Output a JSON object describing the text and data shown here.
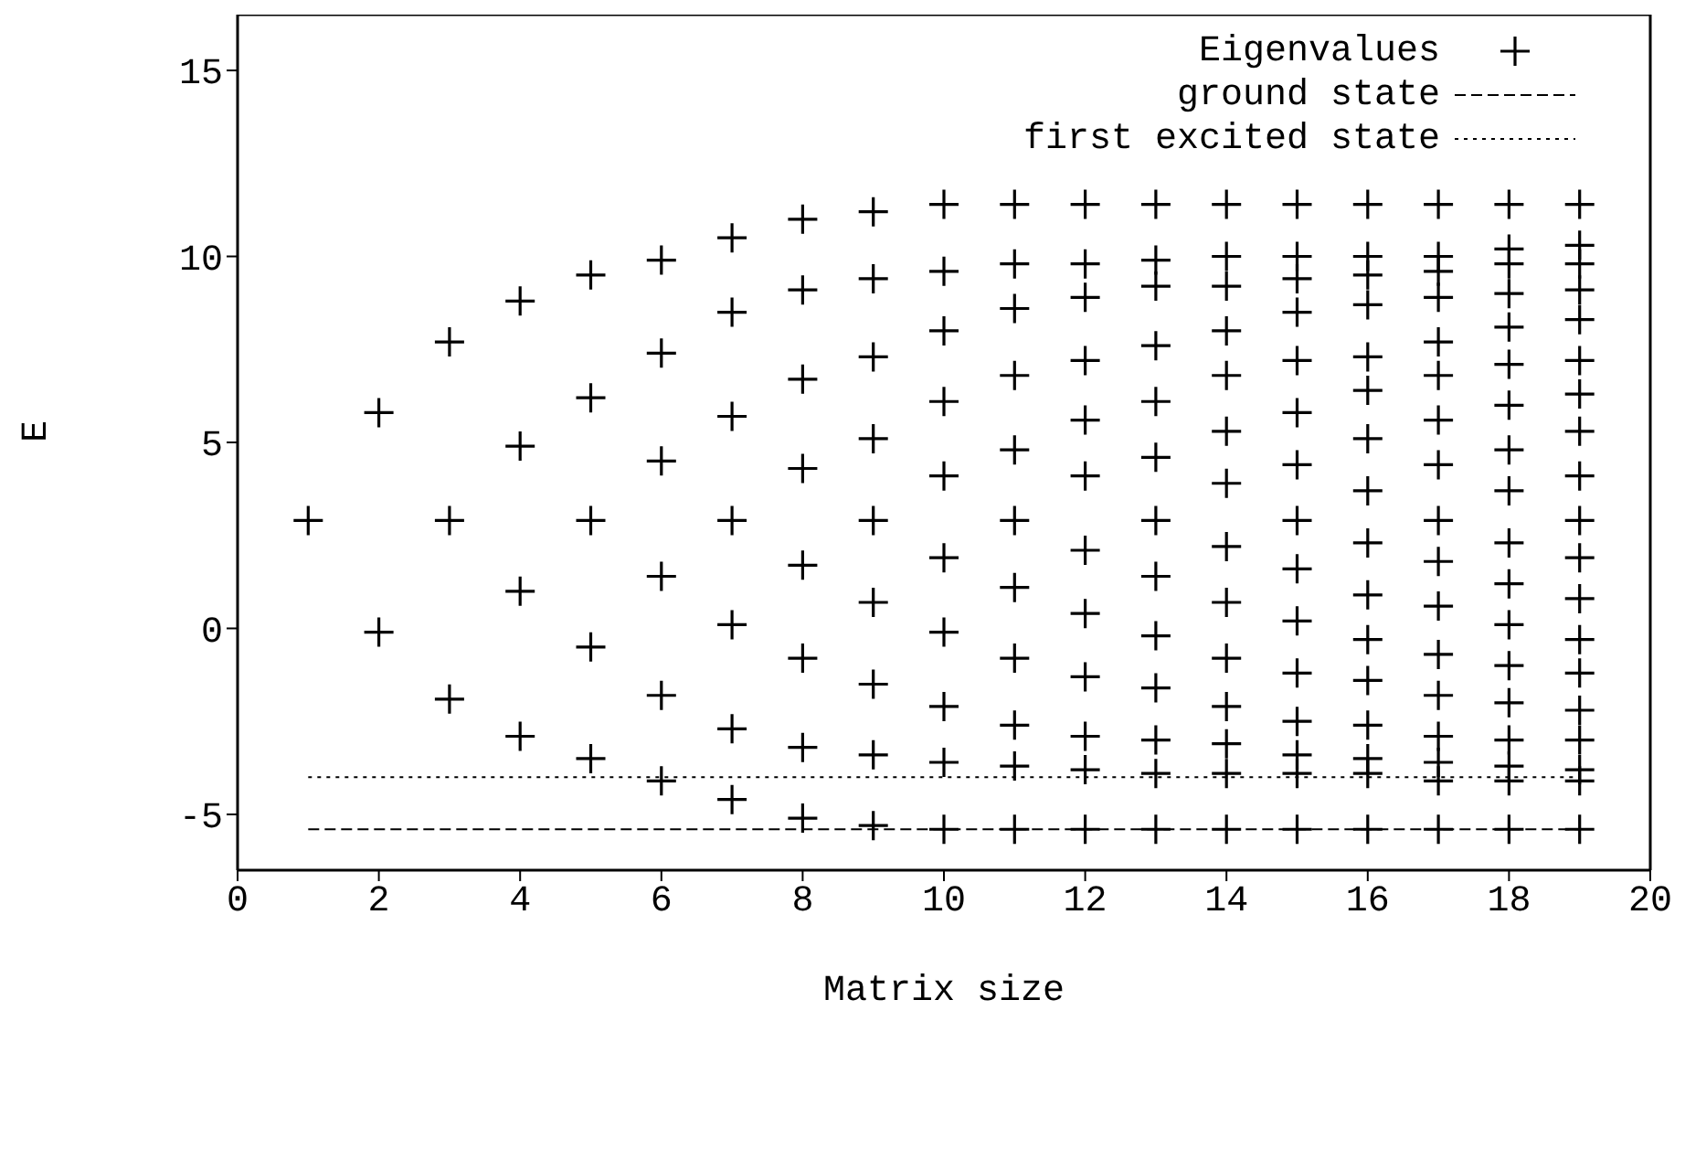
{
  "chart_data": {
    "type": "scatter",
    "xlabel": "Matrix size",
    "ylabel": "E",
    "xlim": [
      0,
      20
    ],
    "xticks": [
      0,
      2,
      4,
      6,
      8,
      10,
      12,
      14,
      16,
      18,
      20
    ],
    "ylim": [
      -6.5,
      16.5
    ],
    "yticks": [
      -5,
      0,
      5,
      10,
      15
    ],
    "grid": false,
    "legend": "top right",
    "series": [
      {
        "name": "Eigenvalues",
        "marker": "cross",
        "color": "#000000",
        "x": [
          1,
          2,
          2,
          3,
          3,
          3,
          4,
          4,
          4,
          4,
          5,
          5,
          5,
          5,
          5,
          6,
          6,
          6,
          6,
          6,
          6,
          7,
          7,
          7,
          7,
          7,
          7,
          7,
          8,
          8,
          8,
          8,
          8,
          8,
          8,
          8,
          9,
          9,
          9,
          9,
          9,
          9,
          9,
          9,
          9,
          10,
          10,
          10,
          10,
          10,
          10,
          10,
          10,
          10,
          10,
          11,
          11,
          11,
          11,
          11,
          11,
          11,
          11,
          11,
          11,
          11,
          12,
          12,
          12,
          12,
          12,
          12,
          12,
          12,
          12,
          12,
          12,
          12,
          13,
          13,
          13,
          13,
          13,
          13,
          13,
          13,
          13,
          13,
          13,
          13,
          13,
          14,
          14,
          14,
          14,
          14,
          14,
          14,
          14,
          14,
          14,
          14,
          14,
          14,
          14,
          15,
          15,
          15,
          15,
          15,
          15,
          15,
          15,
          15,
          15,
          15,
          15,
          15,
          15,
          15,
          16,
          16,
          16,
          16,
          16,
          16,
          16,
          16,
          16,
          16,
          16,
          16,
          16,
          16,
          16,
          16,
          17,
          17,
          17,
          17,
          17,
          17,
          17,
          17,
          17,
          17,
          17,
          17,
          17,
          17,
          17,
          17,
          17,
          18,
          18,
          18,
          18,
          18,
          18,
          18,
          18,
          18,
          18,
          18,
          18,
          18,
          18,
          18,
          18,
          18,
          18,
          19,
          19,
          19,
          19,
          19,
          19,
          19,
          19,
          19,
          19,
          19,
          19,
          19,
          19,
          19,
          19,
          19,
          19,
          19
        ],
        "values": [
          2.9,
          5.8,
          -0.1,
          7.7,
          2.9,
          -1.9,
          8.8,
          4.9,
          1.0,
          -2.9,
          9.5,
          6.2,
          2.9,
          -0.5,
          -3.5,
          9.9,
          7.4,
          4.5,
          1.4,
          -1.8,
          -4.1,
          10.5,
          8.5,
          5.7,
          2.9,
          0.1,
          -2.7,
          -4.6,
          11.0,
          9.1,
          6.7,
          4.3,
          1.7,
          -0.8,
          -3.2,
          -5.1,
          11.2,
          9.4,
          7.3,
          5.1,
          2.9,
          0.7,
          -1.5,
          -3.4,
          -5.3,
          11.4,
          9.6,
          8.0,
          6.1,
          4.1,
          1.9,
          -0.1,
          -2.1,
          -3.6,
          -5.4,
          11.4,
          9.8,
          8.6,
          6.8,
          4.8,
          2.9,
          1.1,
          -0.8,
          -2.6,
          -3.7,
          -5.4,
          11.4,
          9.8,
          8.9,
          7.2,
          5.6,
          4.1,
          2.1,
          0.4,
          -1.3,
          -2.9,
          -3.8,
          -5.4,
          11.4,
          9.9,
          9.2,
          7.6,
          6.1,
          4.6,
          2.9,
          1.4,
          -0.2,
          -1.6,
          -3.0,
          -3.9,
          -5.4,
          11.4,
          10.0,
          9.2,
          8.0,
          6.8,
          5.3,
          3.9,
          2.2,
          0.7,
          -0.8,
          -2.1,
          -3.1,
          -3.9,
          -5.4,
          11.4,
          10.0,
          9.4,
          8.5,
          7.2,
          5.8,
          4.4,
          2.9,
          1.6,
          0.2,
          -1.2,
          -2.5,
          -3.4,
          -3.9,
          -5.4,
          11.4,
          10.0,
          9.5,
          8.7,
          7.3,
          6.4,
          5.1,
          3.7,
          2.3,
          0.9,
          -0.3,
          -1.4,
          -2.6,
          -3.5,
          -3.9,
          -5.4,
          11.4,
          10.0,
          9.6,
          8.9,
          7.7,
          6.8,
          5.6,
          4.4,
          2.9,
          1.8,
          0.6,
          -0.7,
          -1.8,
          -2.9,
          -3.6,
          -4.1,
          -5.4,
          11.4,
          10.2,
          9.8,
          9.0,
          8.1,
          7.1,
          6.0,
          4.8,
          3.7,
          2.3,
          1.2,
          0.1,
          -1.0,
          -2.0,
          -3.0,
          -3.7,
          -4.1,
          -5.4,
          11.4,
          10.3,
          9.8,
          9.1,
          8.3,
          7.2,
          6.3,
          5.3,
          4.1,
          2.9,
          1.9,
          0.8,
          -0.3,
          -1.2,
          -2.2,
          -3.0,
          -3.8,
          -4.1,
          -5.4
        ]
      },
      {
        "name": "ground state",
        "type": "line",
        "line_style": "dashed",
        "color": "#000000",
        "x": [
          1,
          19
        ],
        "values": [
          -5.4,
          -5.4
        ]
      },
      {
        "name": "first excited state",
        "type": "line",
        "line_style": "dotted",
        "color": "#000000",
        "x": [
          1,
          19
        ],
        "values": [
          -4.0,
          -4.0
        ]
      }
    ]
  }
}
